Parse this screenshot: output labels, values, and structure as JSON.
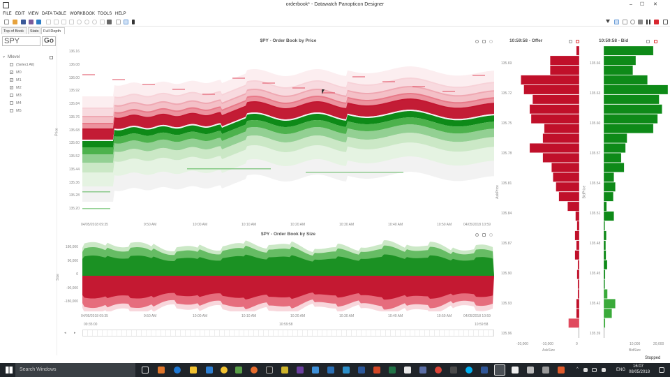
{
  "window": {
    "title": "orderbook* - Datawatch Panopticon Designer",
    "minimize": "–",
    "maximize": "☐",
    "close": "✕"
  },
  "menu": [
    "FILE",
    "EDIT",
    "VIEW",
    "DATA TABLE",
    "WORKBOOK",
    "TOOLS",
    "HELP"
  ],
  "tabs": [
    "Top of Book",
    "Stats",
    "Full Depth"
  ],
  "filter": {
    "symbol": "SPY",
    "go_label": "Go",
    "group_label": "Mlevel",
    "collapse_symbol": "▿",
    "items": [
      {
        "label": "(Select All)",
        "checked": false
      },
      {
        "label": "M0",
        "checked": true
      },
      {
        "label": "M1",
        "checked": true
      },
      {
        "label": "M2",
        "checked": true
      },
      {
        "label": "M3",
        "checked": false
      },
      {
        "label": "M4",
        "checked": false
      },
      {
        "label": "M5",
        "checked": false
      }
    ]
  },
  "price_chart": {
    "title": "$PY - Order Book by Price",
    "ylabel": "Price",
    "yticks": [
      "136.16",
      "136.08",
      "136.00",
      "135.92",
      "135.84",
      "135.76",
      "135.68",
      "135.60",
      "135.52",
      "135.44",
      "135.36",
      "135.28",
      "135.20"
    ],
    "xticks": [
      "04/05/2018 09:35",
      "9:50 AM",
      "10:00 AM",
      "10:10 AM",
      "10:20 AM",
      "10:30 AM",
      "10:40 AM",
      "10:50 AM",
      "04/05/2018 10:59"
    ]
  },
  "size_chart": {
    "title": "$PY - Order Book by Size",
    "ylabel": "Size",
    "yticks": [
      "180,000",
      "90,000",
      "0",
      "-90,000",
      "-180,000"
    ],
    "xticks": [
      "04/05/2018 09:35",
      "9:50 AM",
      "10:00 AM",
      "10:10 AM",
      "10:20 AM",
      "10:30 AM",
      "10:40 AM",
      "10:50 AM",
      "04/05/2018 10:59"
    ],
    "range_start": "09:35:00",
    "range_mid": "10:59:58",
    "range_end": "10:59:58"
  },
  "colors": {
    "ask_dark": "#c0102a",
    "ask_mid": "#e04a5e",
    "ask_light": "#f3bcc4",
    "bid_dark": "#0e8a18",
    "bid_mid": "#3aaa3a",
    "bid_light": "#a8d8a0"
  },
  "offer_chart": {
    "title": "10:59:58 - Offer",
    "ylabel": "AskPrice",
    "xlabel": "AskSize",
    "xticks": [
      "-20,000",
      "-10,000",
      "0"
    ],
    "yticks": [
      "135.69",
      "135.72",
      "135.75",
      "135.78",
      "135.81",
      "135.84",
      "135.87",
      "135.90",
      "135.93",
      "135.96"
    ],
    "chart_data": {
      "type": "bar",
      "title": "10:59:58 - Offer",
      "xlabel": "AskSize",
      "ylabel": "AskPrice",
      "xlim": [
        -22000,
        0
      ],
      "ylim": [
        135.675,
        135.975
      ],
      "categories": [
        135.68,
        135.69,
        135.7,
        135.71,
        135.72,
        135.73,
        135.74,
        135.75,
        135.76,
        135.77,
        135.78,
        135.79,
        135.8,
        135.81,
        135.82,
        135.83,
        135.84,
        135.85,
        135.86,
        135.87,
        135.88,
        135.89,
        135.9,
        135.91,
        135.92,
        135.93,
        135.94,
        135.95,
        135.96
      ],
      "values": [
        -1000,
        -10000,
        -10000,
        -20000,
        -19000,
        -16000,
        -17000,
        -16500,
        -12000,
        -12500,
        -17000,
        -12500,
        -9500,
        -9000,
        -8000,
        -7000,
        -4000,
        -1300,
        -800,
        -1500,
        -1000,
        -1500,
        -500,
        -800,
        -500,
        -500,
        -1000,
        -1000,
        -3700
      ]
    }
  },
  "bid_chart": {
    "title": "10:59:58 - Bid",
    "ylabel": "BidPrice",
    "xlabel": "BidSize",
    "xticks": [
      "10,000",
      "20,000"
    ],
    "yticks": [
      "135.66",
      "135.63",
      "135.60",
      "135.57",
      "135.54",
      "135.51",
      "135.48",
      "135.45",
      "135.42",
      "135.39"
    ],
    "chart_data": {
      "type": "bar",
      "title": "10:59:58 - Bid",
      "xlabel": "BidSize",
      "ylabel": "BidPrice",
      "xlim": [
        0,
        22000
      ],
      "ylim": [
        135.375,
        135.675
      ],
      "categories": [
        135.67,
        135.66,
        135.65,
        135.64,
        135.63,
        135.62,
        135.61,
        135.6,
        135.59,
        135.58,
        135.57,
        135.56,
        135.55,
        135.54,
        135.53,
        135.52,
        135.51,
        135.5,
        135.49,
        135.48,
        135.47,
        135.46,
        135.45,
        135.44,
        135.43,
        135.42,
        135.41,
        135.4,
        135.39
      ],
      "values": [
        17000,
        11000,
        10000,
        15000,
        22000,
        19000,
        20000,
        18500,
        17000,
        8000,
        7500,
        6000,
        7000,
        3500,
        4000,
        3300,
        1000,
        3500,
        400,
        900,
        700,
        800,
        1200,
        500,
        400,
        1300,
        4000,
        2800,
        500
      ]
    }
  },
  "status": "Stopped",
  "taskbar": {
    "search": "Search Windows",
    "lang": "ENG",
    "time": "16:07",
    "date": "08/05/2018"
  }
}
